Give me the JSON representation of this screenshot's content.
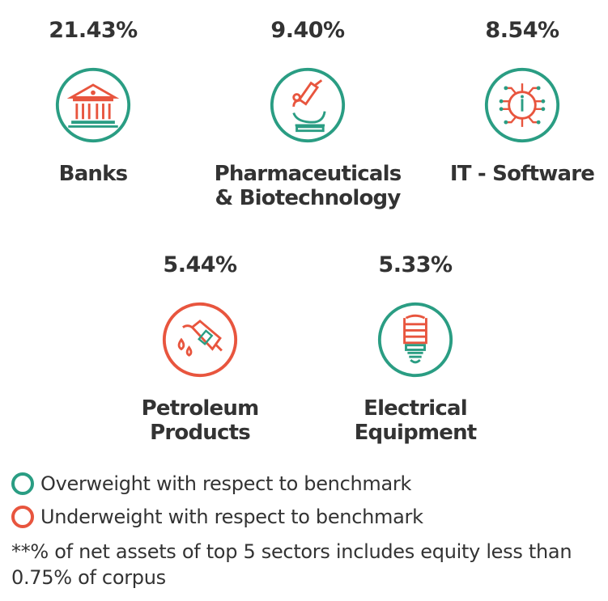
{
  "colors": {
    "overweight": "#2a9d83",
    "underweight": "#e8553e"
  },
  "sectors": [
    {
      "percent": "21.43%",
      "name": "Banks",
      "icon": "bank-icon",
      "weight": "overweight"
    },
    {
      "percent": "9.40%",
      "name": "Pharmaceuticals\n& Biotechnology",
      "icon": "microscope-icon",
      "weight": "overweight"
    },
    {
      "percent": "8.54%",
      "name": "IT - Software",
      "icon": "chip-icon",
      "weight": "overweight"
    },
    {
      "percent": "5.44%",
      "name": "Petroleum\nProducts",
      "icon": "fuel-nozzle-icon",
      "weight": "underweight"
    },
    {
      "percent": "5.33%",
      "name": "Electrical\nEquipment",
      "icon": "bulb-icon",
      "weight": "overweight"
    }
  ],
  "legend": {
    "overweight": "Overweight with respect to benchmark",
    "underweight": "Underweight with respect to benchmark"
  },
  "note": "**% of net assets of top 5 sectors includes equity less than 0.75% of corpus"
}
